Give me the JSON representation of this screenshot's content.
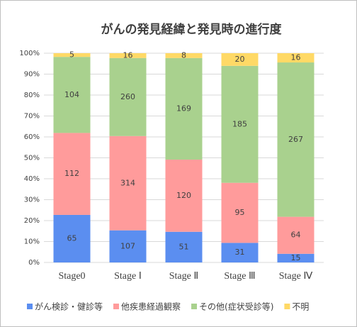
{
  "chart_data": {
    "type": "bar",
    "stacking": "percent",
    "title": "がんの発見経緯と発見時の進行度",
    "categories": [
      "Stage0",
      "Stage Ⅰ",
      "Stage Ⅱ",
      "Stage Ⅲ",
      "Stage Ⅳ"
    ],
    "series": [
      {
        "name": "がん検診・健診等",
        "color": "#5b8ef0",
        "values": [
          65,
          107,
          51,
          31,
          15
        ]
      },
      {
        "name": "他疾患経過観察",
        "color": "#ff9b9b",
        "values": [
          112,
          314,
          120,
          95,
          64
        ]
      },
      {
        "name": "その他(症状受診等)",
        "color": "#a9d18e",
        "values": [
          104,
          260,
          169,
          185,
          267
        ]
      },
      {
        "name": "不明",
        "color": "#ffd966",
        "values": [
          5,
          16,
          8,
          20,
          16
        ]
      }
    ],
    "ylim": [
      0,
      100
    ],
    "yticks": [
      {
        "value": 0,
        "label": "0%"
      },
      {
        "value": 10,
        "label": "10%"
      },
      {
        "value": 20,
        "label": "20%"
      },
      {
        "value": 30,
        "label": "30%"
      },
      {
        "value": 40,
        "label": "40%"
      },
      {
        "value": 50,
        "label": "50%"
      },
      {
        "value": 60,
        "label": "60%"
      },
      {
        "value": 70,
        "label": "70%"
      },
      {
        "value": 80,
        "label": "80%"
      },
      {
        "value": 90,
        "label": "90%"
      },
      {
        "value": 100,
        "label": "100%"
      }
    ],
    "grid": true,
    "legend": "bottom"
  }
}
